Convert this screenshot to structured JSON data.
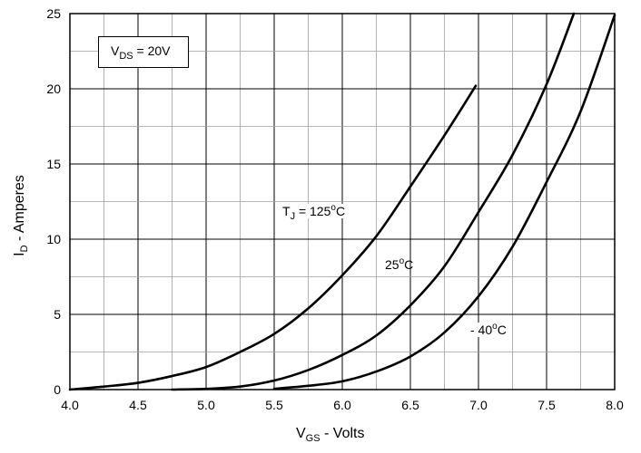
{
  "chart_data": {
    "type": "line",
    "xlabel": {
      "main": "V",
      "sub": "GS",
      "rest": " - Volts"
    },
    "ylabel": {
      "main": "I",
      "sub": "D",
      "rest": " - Amperes"
    },
    "xlim": [
      4.0,
      8.0
    ],
    "ylim": [
      0,
      25
    ],
    "x_ticks": [
      4.0,
      4.5,
      5.0,
      5.5,
      6.0,
      6.5,
      7.0,
      7.5,
      8.0
    ],
    "x_tick_labels": [
      "4.0",
      "4.5",
      "5.0",
      "5.5",
      "6.0",
      "6.5",
      "7.0",
      "7.5",
      "8.0"
    ],
    "y_ticks": [
      0,
      5,
      10,
      15,
      20,
      25
    ],
    "y_tick_labels": [
      "0",
      "5",
      "10",
      "15",
      "20",
      "25"
    ],
    "grid": true,
    "condition_box": {
      "main": "V",
      "sub": "DS",
      "rest": " = 20V"
    },
    "series": [
      {
        "name": "T_J = 125°C",
        "label_parts": {
          "pre": "T",
          "sub": "J",
          "mid": " = 125",
          "sup": "o",
          "post": "C"
        },
        "x": [
          4.0,
          4.25,
          4.5,
          4.75,
          5.0,
          5.25,
          5.5,
          5.75,
          6.0,
          6.25,
          6.5,
          6.75,
          6.98
        ],
        "y": [
          0.0,
          0.2,
          0.45,
          0.9,
          1.5,
          2.5,
          3.7,
          5.4,
          7.6,
          10.2,
          13.5,
          16.9,
          20.2
        ]
      },
      {
        "name": "25°C",
        "label_parts": {
          "pre": "25",
          "sup": "o",
          "post": "C"
        },
        "x": [
          4.75,
          5.0,
          5.25,
          5.5,
          5.75,
          6.0,
          6.25,
          6.5,
          6.75,
          7.0,
          7.25,
          7.5,
          7.7
        ],
        "y": [
          0.0,
          0.05,
          0.2,
          0.6,
          1.3,
          2.3,
          3.6,
          5.6,
          8.2,
          11.8,
          15.6,
          20.3,
          25.0
        ]
      },
      {
        "name": "-40°C",
        "label_parts": {
          "pre": "- 40",
          "sup": "o",
          "post": "C"
        },
        "x": [
          5.5,
          5.75,
          6.0,
          6.25,
          6.5,
          6.75,
          7.0,
          7.25,
          7.5,
          7.75,
          8.0
        ],
        "y": [
          0.05,
          0.25,
          0.55,
          1.2,
          2.2,
          3.8,
          6.2,
          9.5,
          13.8,
          18.5,
          24.9
        ]
      }
    ]
  }
}
